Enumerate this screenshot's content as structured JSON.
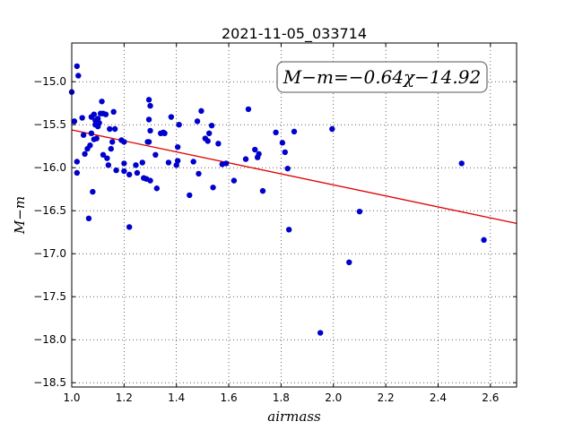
{
  "chart_data": {
    "type": "scatter",
    "title": "2021-11-05_033714",
    "xlabel": "airmass",
    "ylabel": "M−m",
    "xlim": [
      1.0,
      2.7
    ],
    "ylim": [
      -18.55,
      -14.55
    ],
    "y_inverted": true,
    "grid": true,
    "x_ticks": [
      1.0,
      1.2,
      1.4,
      1.6,
      1.8,
      2.0,
      2.2,
      2.4,
      2.6
    ],
    "x_tick_labels": [
      "1.0",
      "1.2",
      "1.4",
      "1.6",
      "1.8",
      "2.0",
      "2.2",
      "2.4",
      "2.6"
    ],
    "y_ticks": [
      -15.0,
      -15.5,
      -16.0,
      -16.5,
      -17.0,
      -17.5,
      -18.0,
      -18.5
    ],
    "y_tick_labels": [
      "−15.0",
      "−15.5",
      "−16.0",
      "−16.5",
      "−17.0",
      "−17.5",
      "−18.0",
      "−18.5"
    ],
    "annotation": "M−m=−0.64χ−14.92",
    "fit": {
      "slope": -0.64,
      "intercept": -14.92,
      "color": "#e00000"
    },
    "point_color": "#0000cc",
    "points": [
      [
        1.0,
        -15.12
      ],
      [
        1.01,
        -15.46
      ],
      [
        1.02,
        -14.82
      ],
      [
        1.025,
        -14.93
      ],
      [
        1.02,
        -15.93
      ],
      [
        1.02,
        -16.06
      ],
      [
        1.04,
        -15.42
      ],
      [
        1.045,
        -15.62
      ],
      [
        1.05,
        -15.84
      ],
      [
        1.06,
        -15.78
      ],
      [
        1.065,
        -16.59
      ],
      [
        1.07,
        -15.74
      ],
      [
        1.075,
        -15.41
      ],
      [
        1.075,
        -15.6
      ],
      [
        1.08,
        -16.28
      ],
      [
        1.085,
        -15.38
      ],
      [
        1.085,
        -15.67
      ],
      [
        1.09,
        -15.45
      ],
      [
        1.09,
        -15.5
      ],
      [
        1.095,
        -15.66
      ],
      [
        1.1,
        -15.43
      ],
      [
        1.1,
        -15.52
      ],
      [
        1.105,
        -15.48
      ],
      [
        1.11,
        -15.37
      ],
      [
        1.115,
        -15.23
      ],
      [
        1.12,
        -15.37
      ],
      [
        1.12,
        -15.85
      ],
      [
        1.13,
        -15.38
      ],
      [
        1.135,
        -15.89
      ],
      [
        1.14,
        -15.97
      ],
      [
        1.145,
        -15.55
      ],
      [
        1.15,
        -15.78
      ],
      [
        1.155,
        -15.7
      ],
      [
        1.16,
        -15.35
      ],
      [
        1.165,
        -15.55
      ],
      [
        1.17,
        -16.03
      ],
      [
        1.19,
        -15.68
      ],
      [
        1.2,
        -15.7
      ],
      [
        1.2,
        -16.04
      ],
      [
        1.2,
        -15.95
      ],
      [
        1.22,
        -16.69
      ],
      [
        1.22,
        -16.08
      ],
      [
        1.245,
        -15.97
      ],
      [
        1.25,
        -16.06
      ],
      [
        1.27,
        -15.94
      ],
      [
        1.275,
        -16.12
      ],
      [
        1.285,
        -16.13
      ],
      [
        1.29,
        -15.7
      ],
      [
        1.295,
        -15.7
      ],
      [
        1.295,
        -15.21
      ],
      [
        1.295,
        -15.44
      ],
      [
        1.3,
        -15.28
      ],
      [
        1.3,
        -15.57
      ],
      [
        1.3,
        -16.15
      ],
      [
        1.32,
        -15.85
      ],
      [
        1.325,
        -16.24
      ],
      [
        1.34,
        -15.6
      ],
      [
        1.35,
        -15.59
      ],
      [
        1.355,
        -15.6
      ],
      [
        1.37,
        -15.94
      ],
      [
        1.38,
        -15.41
      ],
      [
        1.4,
        -15.97
      ],
      [
        1.405,
        -15.92
      ],
      [
        1.405,
        -15.76
      ],
      [
        1.41,
        -15.5
      ],
      [
        1.45,
        -16.32
      ],
      [
        1.465,
        -15.93
      ],
      [
        1.48,
        -15.46
      ],
      [
        1.485,
        -16.07
      ],
      [
        1.495,
        -15.34
      ],
      [
        1.51,
        -15.66
      ],
      [
        1.52,
        -15.69
      ],
      [
        1.525,
        -15.6
      ],
      [
        1.535,
        -15.51
      ],
      [
        1.54,
        -16.23
      ],
      [
        1.56,
        -15.72
      ],
      [
        1.575,
        -15.96
      ],
      [
        1.59,
        -15.95
      ],
      [
        1.62,
        -16.15
      ],
      [
        1.665,
        -15.9
      ],
      [
        1.675,
        -15.32
      ],
      [
        1.7,
        -15.79
      ],
      [
        1.71,
        -15.88
      ],
      [
        1.715,
        -15.84
      ],
      [
        1.73,
        -16.27
      ],
      [
        1.78,
        -15.59
      ],
      [
        1.805,
        -15.71
      ],
      [
        1.815,
        -15.82
      ],
      [
        1.825,
        -16.01
      ],
      [
        1.83,
        -16.72
      ],
      [
        1.85,
        -15.58
      ],
      [
        1.95,
        -17.92
      ],
      [
        1.995,
        -15.55
      ],
      [
        2.06,
        -17.1
      ],
      [
        2.1,
        -16.51
      ],
      [
        2.49,
        -15.95
      ],
      [
        2.575,
        -16.84
      ]
    ]
  }
}
